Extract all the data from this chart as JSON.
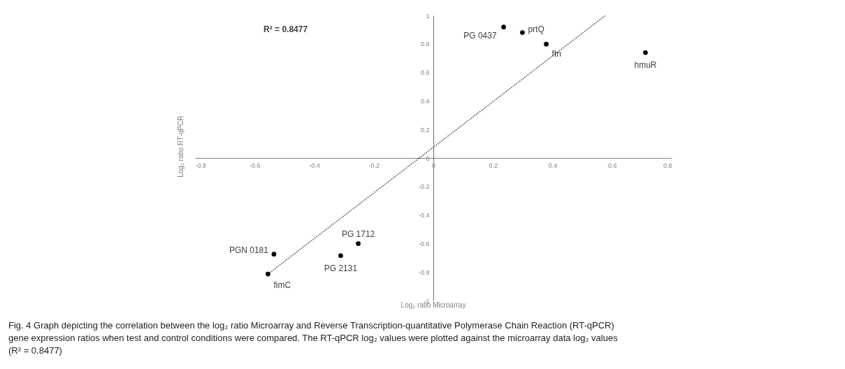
{
  "chart_data": {
    "type": "scatter",
    "xlabel": "Log₂ ratio Microarray",
    "ylabel": "Log₂ ratio RT-qPCR",
    "xlim": [
      -0.8,
      0.8
    ],
    "xticks": [
      -0.8,
      -0.6,
      -0.4,
      -0.2,
      0,
      0.2,
      0.4,
      0.6,
      0.8
    ],
    "ylim": [
      -1,
      1
    ],
    "yticks": [
      -1,
      -0.8,
      -0.6,
      -0.4,
      -0.2,
      0,
      0.2,
      0.4,
      0.6,
      0.8,
      1
    ],
    "grid": false,
    "marker": "circle",
    "x": [
      0.236,
      0.299,
      0.379,
      0.712,
      -0.535,
      -0.555,
      -0.311,
      -0.252
    ],
    "series": [
      {
        "color": "#000000",
        "values": [
          0.918,
          0.88,
          0.798,
          0.739,
          -0.675,
          -0.814,
          -0.685,
          -0.601
        ]
      },
      {
        "type": "line",
        "color": "#333333",
        "line_style": "dotted",
        "marker": "none",
        "x": [
          -0.555,
          0.578
        ],
        "values": [
          -0.814,
          1.0
        ]
      }
    ],
    "annotations": [
      "R² = 0.8477",
      "Fig. 4 Graph depicting the correlation between the log₂ ratio Microarray and Reverse Transcription-quantitative Polymerase Chain Reaction (RT-qPCR) gene expression ratios when test and control conditions were compared. The RT-qPCR log₂ values were plotted against the microarray data log₂ values (R² = 0.8477)",
      {
        "text": "PG 0437",
        "x": 0.236,
        "y": 0.918
      },
      {
        "text": "prtQ",
        "x": 0.299,
        "y": 0.88
      },
      {
        "text": "ftn",
        "x": 0.379,
        "y": 0.798
      },
      {
        "text": "hmuR",
        "x": 0.712,
        "y": 0.739
      },
      {
        "text": "PGN 0181",
        "x": -0.535,
        "y": -0.675
      },
      {
        "text": "fimC",
        "x": -0.555,
        "y": -0.814
      },
      {
        "text": "PG 2131",
        "x": -0.311,
        "y": -0.685
      },
      {
        "text": "PG 1712",
        "x": -0.252,
        "y": -0.601
      }
    ]
  }
}
